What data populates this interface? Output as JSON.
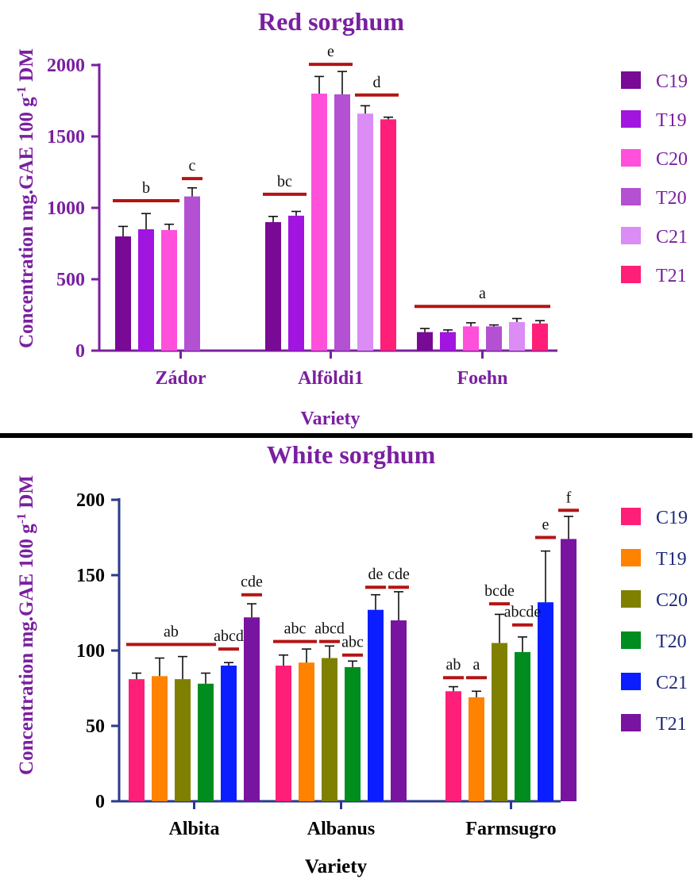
{
  "chart_data": [
    {
      "type": "bar",
      "title": "Red sorghum",
      "ylabel": "Concentration mg.GAE 100 g",
      "ylabel_sup": "-1",
      "ylabel_suffix": " DM",
      "xlabel": "Variety",
      "ylim": [
        0,
        2000
      ],
      "yticks": [
        "0",
        "500",
        "1000",
        "1500",
        "2000"
      ],
      "categories": [
        "Zádor",
        "Alföldi1",
        "Foehn"
      ],
      "axis_color": "#7a1fa0",
      "legend_position": "right",
      "series": [
        {
          "name": "C19",
          "color": "#780a96",
          "values": [
            800,
            900,
            130
          ],
          "errors": [
            70,
            40,
            25
          ]
        },
        {
          "name": "T19",
          "color": "#a214e0",
          "values": [
            850,
            945,
            130
          ],
          "errors": [
            110,
            30,
            15
          ]
        },
        {
          "name": "C20",
          "color": "#ff50dc",
          "values": [
            845,
            1800,
            170
          ],
          "errors": [
            40,
            120,
            25
          ]
        },
        {
          "name": "T20",
          "color": "#b450d2",
          "values": [
            1080,
            1795,
            170
          ],
          "errors": [
            60,
            160,
            10
          ]
        },
        {
          "name": "C21",
          "color": "#dc8cf5",
          "values": [
            null,
            1660,
            200
          ],
          "errors": [
            null,
            55,
            25
          ]
        },
        {
          "name": "T21",
          "color": "#ff1e78",
          "values": [
            null,
            1620,
            190
          ],
          "errors": [
            null,
            15,
            20
          ]
        }
      ],
      "significance": [
        {
          "label": "b",
          "category": 0,
          "series_from": 0,
          "series_to": 2,
          "y": 1050
        },
        {
          "label": "c",
          "category": 0,
          "series_from": 3,
          "series_to": 3,
          "y": 1205
        },
        {
          "label": "bc",
          "category": 1,
          "series_from": 0,
          "series_to": 1,
          "y": 1095
        },
        {
          "label": "e",
          "category": 1,
          "series_from": 2,
          "series_to": 3,
          "y": 2005
        },
        {
          "label": "d",
          "category": 1,
          "series_from": 4,
          "series_to": 5,
          "y": 1790
        },
        {
          "label": "a",
          "category": 2,
          "series_from": 0,
          "series_to": 5,
          "y": 310
        }
      ]
    },
    {
      "type": "bar",
      "title": "White sorghum",
      "ylabel": "Concentration mg.GAE 100 g",
      "ylabel_sup": "-1",
      "ylabel_suffix": " DM",
      "xlabel": "Variety",
      "ylim": [
        0,
        200
      ],
      "yticks": [
        "0",
        "50",
        "100",
        "150",
        "200"
      ],
      "categories": [
        "Albita",
        "Albanus",
        "Farmsugro"
      ],
      "axis_color": "#2b3a8a",
      "legend_position": "right",
      "series": [
        {
          "name": "C19",
          "color": "#ff1e78",
          "values": [
            81,
            90,
            73
          ],
          "errors": [
            4,
            7,
            3
          ]
        },
        {
          "name": "T19",
          "color": "#ff8200",
          "values": [
            83,
            92,
            69
          ],
          "errors": [
            12,
            9,
            4
          ]
        },
        {
          "name": "C20",
          "color": "#808000",
          "values": [
            81,
            95,
            105
          ],
          "errors": [
            15,
            8,
            19
          ]
        },
        {
          "name": "T20",
          "color": "#008c1e",
          "values": [
            78,
            89,
            99
          ],
          "errors": [
            7,
            4,
            10
          ]
        },
        {
          "name": "C21",
          "color": "#0a1eff",
          "values": [
            90,
            127,
            132
          ],
          "errors": [
            2,
            10,
            34
          ]
        },
        {
          "name": "T21",
          "color": "#7814a0",
          "values": [
            122,
            120,
            174
          ],
          "errors": [
            9,
            19,
            15
          ]
        }
      ],
      "significance": [
        {
          "label": "ab",
          "category": 0,
          "series_from": 0,
          "series_to": 3,
          "y": 104
        },
        {
          "label": "abcd",
          "category": 0,
          "series_from": 4,
          "series_to": 4,
          "y": 101
        },
        {
          "label": "cde",
          "category": 0,
          "series_from": 5,
          "series_to": 5,
          "y": 137
        },
        {
          "label": "abc",
          "category": 1,
          "series_from": 0,
          "series_to": 1,
          "y": 106
        },
        {
          "label": "abcd",
          "category": 1,
          "series_from": 2,
          "series_to": 2,
          "y": 106
        },
        {
          "label": "abc",
          "category": 1,
          "series_from": 3,
          "series_to": 3,
          "y": 97
        },
        {
          "label": "de",
          "category": 1,
          "series_from": 4,
          "series_to": 4,
          "y": 142
        },
        {
          "label": "cde",
          "category": 1,
          "series_from": 5,
          "series_to": 5,
          "y": 142
        },
        {
          "label": "ab",
          "category": 2,
          "series_from": 0,
          "series_to": 0,
          "y": 82
        },
        {
          "label": "a",
          "category": 2,
          "series_from": 1,
          "series_to": 1,
          "y": 82
        },
        {
          "label": "bcde",
          "category": 2,
          "series_from": 2,
          "series_to": 2,
          "y": 131
        },
        {
          "label": "abcde",
          "category": 2,
          "series_from": 3,
          "series_to": 3,
          "y": 117
        },
        {
          "label": "e",
          "category": 2,
          "series_from": 4,
          "series_to": 4,
          "y": 175
        },
        {
          "label": "f",
          "category": 2,
          "series_from": 5,
          "series_to": 5,
          "y": 193
        }
      ]
    }
  ],
  "colors": {
    "significance_line": "#b41414",
    "separator": "#000000"
  }
}
